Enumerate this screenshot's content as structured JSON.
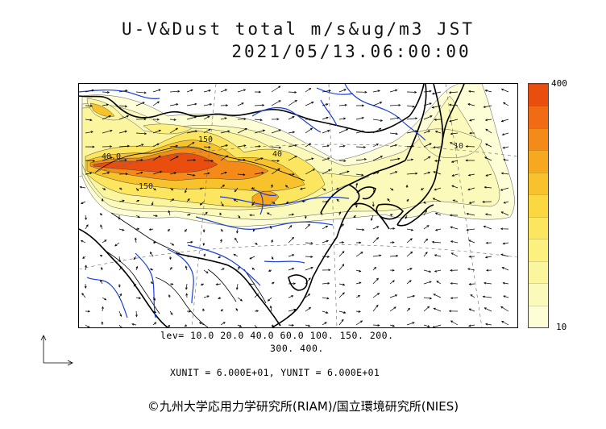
{
  "header": {
    "title_line1": "U-V&Dust total m/s&ug/m3 JST",
    "title_line2": "2021/05/13.06:00:00"
  },
  "legend": {
    "max_label": "400",
    "min_label": "10",
    "colors": [
      "#fdfdd6",
      "#fcfaba",
      "#fbf59d",
      "#fcf07f",
      "#fde65f",
      "#fbd742",
      "#f8c22c",
      "#f6a91f",
      "#f48b18",
      "#f06b13",
      "#ea4e0f"
    ],
    "levels_line1": "lev= 10.0 20.0 40.0 60.0 100. 150. 200.",
    "levels_line2": "300. 400."
  },
  "units_text": "XUNIT = 6.000E+01, YUNIT = 6.000E+01",
  "contour_labels": [
    "150",
    "40",
    "40.0",
    "150",
    "10"
  ],
  "copyright": "©九州大学応用力学研究所(RIAM)/国立環境研究所(NIES)",
  "colors": {
    "coast": "#000000",
    "rivers": "#1a3fd9",
    "grid": "#666666"
  }
}
